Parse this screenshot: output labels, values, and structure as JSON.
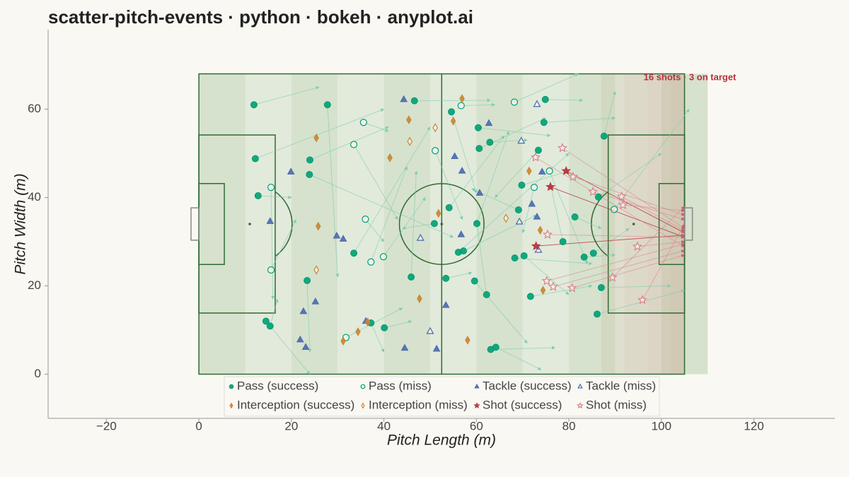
{
  "chart_data": {
    "type": "scatter",
    "title": "scatter-pitch-events · python · bokeh · anyplot.ai",
    "xlabel": "Pitch Length (m)",
    "ylabel": "Pitch Width (m)",
    "annotation": "16 shots · 3 on target",
    "xlim": [
      -32.6,
      137.5
    ],
    "ylim": [
      -10,
      78
    ],
    "xticks": [
      {
        "value": -20,
        "label": "−20"
      },
      0,
      20,
      40,
      60,
      80,
      100,
      120
    ],
    "yticks": [
      0,
      20,
      40,
      60
    ],
    "series": [
      {
        "name": "Pass (success)",
        "color": "#009E73",
        "marker": "circle",
        "filled": true,
        "x": [
          11.9,
          27.8,
          12.2,
          12.8,
          24.0,
          23.9,
          23.4,
          33.5,
          14.5,
          15.4,
          37.2,
          40.1,
          46.6,
          54.6,
          50.9,
          54.1,
          45.9,
          53.4,
          56.1,
          57.2,
          60.4,
          60.6,
          62.9,
          60.1,
          59.6,
          62.2,
          63.1,
          64.2,
          74.9,
          74.6,
          73.4,
          69.8,
          69.1,
          68.3,
          70.3,
          71.7,
          78.7,
          81.3,
          83.3,
          85.3,
          86.4,
          87.6,
          87.0,
          86.1
        ],
        "y": [
          61.0,
          61.0,
          48.8,
          40.4,
          48.5,
          45.2,
          21.2,
          27.4,
          12.0,
          10.9,
          11.6,
          10.5,
          61.9,
          59.4,
          34.1,
          37.7,
          22.0,
          21.7,
          27.6,
          27.9,
          55.8,
          51.1,
          52.5,
          34.1,
          21.1,
          18.0,
          5.6,
          6.1,
          62.2,
          57.0,
          50.7,
          42.8,
          37.2,
          26.3,
          26.8,
          17.6,
          30.0,
          35.6,
          26.5,
          27.4,
          40.1,
          53.9,
          19.6,
          13.6
        ],
        "end_x": [
          26,
          30,
          40,
          20,
          41,
          55,
          24,
          50,
          24,
          17,
          40,
          46,
          63,
          60,
          44,
          66,
          47,
          59,
          80,
          73,
          76,
          75,
          71,
          67,
          71,
          60,
          77,
          74,
          83,
          90,
          64,
          80,
          59,
          85,
          80,
          85,
          76,
          87,
          90,
          93,
          100,
          90,
          102,
          105
        ],
        "end_y": [
          65,
          22,
          60,
          40,
          56,
          31,
          5,
          56,
          0,
          17,
          5,
          12,
          62,
          41,
          33,
          54,
          46,
          23,
          50,
          36,
          54,
          58,
          53,
          55,
          7,
          35,
          6,
          1,
          62,
          58,
          40,
          46,
          42,
          25,
          18,
          20,
          43,
          33,
          27,
          33,
          50,
          64,
          20,
          19
        ]
      },
      {
        "name": "Pass (miss)",
        "color": "#009E73",
        "marker": "circle",
        "filled": false,
        "x": [
          15.6,
          15.6,
          35.6,
          33.5,
          36.0,
          37.2,
          39.9,
          31.8,
          51.1,
          56.7,
          68.2,
          72.5,
          75.8,
          89.8
        ],
        "y": [
          42.3,
          23.6,
          57.0,
          52.0,
          35.1,
          25.4,
          26.6,
          8.3,
          50.6,
          60.8,
          61.6,
          42.3,
          46.0,
          37.3
        ],
        "end_x": [
          16,
          21,
          41,
          43,
          40,
          45,
          49,
          44,
          57,
          64,
          82,
          70,
          84,
          106
        ],
        "end_y": [
          17,
          35,
          55,
          35,
          30,
          47,
          40,
          15,
          35,
          61,
          68,
          32,
          25,
          60
        ]
      },
      {
        "name": "Tackle (success)",
        "color": "#4A6AAE",
        "marker": "triangle",
        "filled": true,
        "x": [
          19.9,
          15.4,
          29.8,
          31.2,
          22.6,
          25.2,
          21.9,
          23.1,
          36.1,
          44.3,
          55.3,
          56.9,
          56.7,
          53.4,
          44.5,
          51.4,
          62.7,
          60.7,
          74.2,
          72.0,
          73.1
        ],
        "y": [
          45.8,
          34.6,
          31.3,
          30.6,
          14.2,
          16.4,
          7.8,
          6.1,
          12.0,
          62.2,
          49.3,
          46.0,
          31.6,
          15.6,
          5.9,
          5.7,
          56.8,
          41.0,
          45.8,
          38.5,
          35.6
        ]
      },
      {
        "name": "Tackle (miss)",
        "color": "#4A6AAE",
        "marker": "triangle",
        "filled": false,
        "x": [
          47.9,
          50.0,
          69.7,
          73.1,
          69.3,
          73.4
        ],
        "y": [
          30.8,
          9.7,
          52.8,
          61.1,
          34.5,
          28.1
        ]
      },
      {
        "name": "Interception (success)",
        "color": "#C98532",
        "marker": "diamond",
        "filled": true,
        "x": [
          25.4,
          25.8,
          45.4,
          41.3,
          55.0,
          56.9,
          51.8,
          47.7,
          34.4,
          31.2,
          36.5,
          58.1,
          71.4,
          73.8,
          74.4
        ],
        "y": [
          53.5,
          33.5,
          57.6,
          49.0,
          57.3,
          62.4,
          36.4,
          17.1,
          9.6,
          7.5,
          11.8,
          7.7,
          46.0,
          32.6,
          19.0
        ]
      },
      {
        "name": "Interception (miss)",
        "color": "#C98532",
        "marker": "diamond",
        "filled": false,
        "x": [
          25.4,
          45.6,
          51.1,
          66.4
        ],
        "y": [
          23.6,
          52.7,
          55.8,
          35.3
        ]
      },
      {
        "name": "Shot (success)",
        "color": "#B5313A",
        "marker": "star",
        "filled": true,
        "x": [
          79.4,
          76.0,
          72.9
        ],
        "y": [
          46.0,
          42.4,
          29.0
        ],
        "end_x": [
          105,
          105,
          105
        ],
        "end_y": [
          32,
          31,
          31.5
        ]
      },
      {
        "name": "Shot (miss)",
        "color": "#D9828A",
        "marker": "star",
        "filled": false,
        "x": [
          72.8,
          78.6,
          75.4,
          85.2,
          91.4,
          91.7,
          94.8,
          89.4,
          80.7,
          75.2,
          76.6,
          95.9,
          80.9
        ],
        "y": [
          49.1,
          51.2,
          31.6,
          41.3,
          40.2,
          38.3,
          28.9,
          21.9,
          19.5,
          21.1,
          19.8,
          16.8,
          44.7
        ],
        "end_x": [
          105,
          105,
          105,
          105,
          105,
          105,
          105,
          105,
          105,
          105,
          105,
          105,
          105
        ],
        "end_y": [
          28.8,
          33,
          31,
          35,
          32.5,
          37,
          30,
          38,
          27,
          29.5,
          28,
          34,
          36
        ]
      }
    ]
  }
}
